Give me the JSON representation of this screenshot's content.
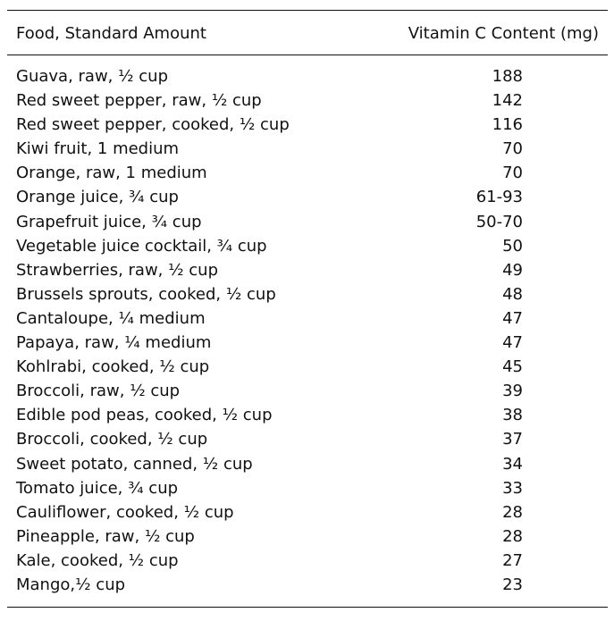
{
  "table": {
    "headers": {
      "food": "Food, Standard Amount",
      "vitamin_c": "Vitamin C Content (mg)"
    },
    "rows": [
      {
        "food": "Guava, raw, ½ cup",
        "value": "188"
      },
      {
        "food": "Red sweet pepper, raw, ½ cup",
        "value": "142"
      },
      {
        "food": "Red sweet pepper, cooked, ½ cup",
        "value": "116"
      },
      {
        "food": "Kiwi fruit, 1 medium",
        "value": "70"
      },
      {
        "food": "Orange, raw, 1 medium",
        "value": "70"
      },
      {
        "food": "Orange juice, ¾ cup",
        "value": "61-93"
      },
      {
        "food": "Grapefruit juice, ¾ cup",
        "value": "50-70"
      },
      {
        "food": "Vegetable juice cocktail, ¾ cup",
        "value": "50"
      },
      {
        "food": "Strawberries, raw, ½ cup",
        "value": "49"
      },
      {
        "food": "Brussels sprouts, cooked, ½ cup",
        "value": "48"
      },
      {
        "food": "Cantaloupe, ¼ medium",
        "value": "47"
      },
      {
        "food": "Papaya, raw, ¼ medium",
        "value": "47"
      },
      {
        "food": "Kohlrabi, cooked, ½ cup",
        "value": "45"
      },
      {
        "food": "Broccoli, raw, ½ cup",
        "value": "39"
      },
      {
        "food": "Edible pod peas, cooked, ½ cup",
        "value": "38"
      },
      {
        "food": "Broccoli, cooked, ½ cup",
        "value": "37"
      },
      {
        "food": "Sweet potato, canned, ½ cup",
        "value": "34"
      },
      {
        "food": "Tomato juice, ¾ cup",
        "value": "33"
      },
      {
        "food": "Cauliflower, cooked, ½ cup",
        "value": "28"
      },
      {
        "food": "Pineapple, raw, ½ cup",
        "value": "28"
      },
      {
        "food": "Kale, cooked, ½ cup",
        "value": "27"
      },
      {
        "food": "Mango,½ cup",
        "value": "23"
      }
    ]
  }
}
